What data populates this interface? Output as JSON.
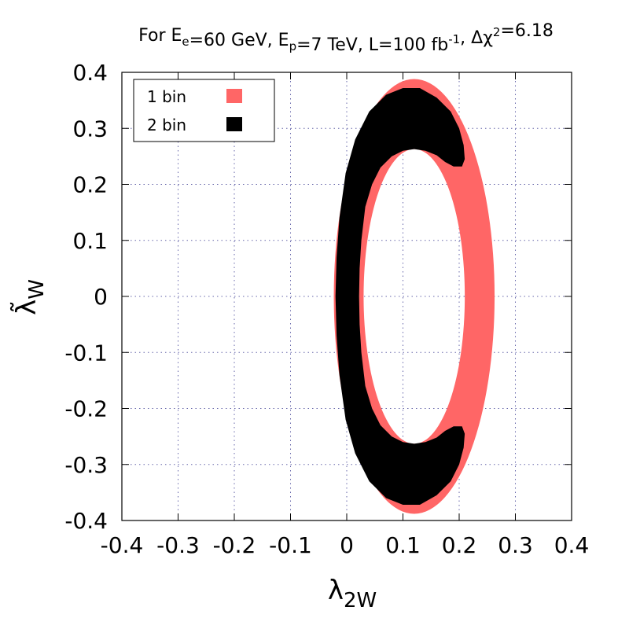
{
  "chart_data": {
    "type": "scatter",
    "title": {
      "parts": [
        {
          "t": "For E"
        },
        {
          "t": "e",
          "s": "sub"
        },
        {
          "t": "=60 GeV, E"
        },
        {
          "t": "p",
          "s": "sub"
        },
        {
          "t": "=7 TeV, L=100 fb"
        },
        {
          "t": "-1",
          "s": "sup"
        },
        {
          "t": ", Δχ"
        },
        {
          "t": "2",
          "s": "sup"
        },
        {
          "t": "=6.18"
        }
      ]
    },
    "xlabel": {
      "main": "λ",
      "sub": "2W"
    },
    "ylabel": {
      "main": "λ̃",
      "sub": "W"
    },
    "xlim": [
      -0.4,
      0.4
    ],
    "ylim": [
      -0.4,
      0.4
    ],
    "xticks": [
      "-0.4",
      "-0.3",
      "-0.2",
      "-0.1",
      "0",
      "0.1",
      "0.2",
      "0.3",
      "0.4"
    ],
    "yticks": [
      "-0.4",
      "-0.3",
      "-0.2",
      "-0.1",
      "0",
      "0.1",
      "0.2",
      "0.3",
      "0.4"
    ],
    "grid": true,
    "legend_position": "top-left",
    "series": [
      {
        "name": "1 bin",
        "color": "#ff6666",
        "outer": {
          "cx": 0.12,
          "cy": 0.0,
          "rx": 0.143,
          "ry": 0.388
        },
        "inner": {
          "cx": 0.12,
          "cy": 0.0,
          "rx": 0.09,
          "ry": 0.263
        }
      },
      {
        "name": "2 bin",
        "color": "#000000",
        "boundary": [
          [
            0.13,
            0.372
          ],
          [
            0.16,
            0.355
          ],
          [
            0.185,
            0.33
          ],
          [
            0.2,
            0.3
          ],
          [
            0.208,
            0.27
          ],
          [
            0.21,
            0.245
          ],
          [
            0.205,
            0.232
          ],
          [
            0.19,
            0.232
          ],
          [
            0.175,
            0.24
          ],
          [
            0.16,
            0.252
          ],
          [
            0.14,
            0.26
          ],
          [
            0.12,
            0.263
          ],
          [
            0.1,
            0.26
          ],
          [
            0.08,
            0.25
          ],
          [
            0.06,
            0.23
          ],
          [
            0.045,
            0.2
          ],
          [
            0.033,
            0.16
          ],
          [
            0.026,
            0.1
          ],
          [
            0.023,
            0.05
          ],
          [
            0.022,
            0.0
          ],
          [
            0.023,
            -0.05
          ],
          [
            0.026,
            -0.1
          ],
          [
            0.033,
            -0.16
          ],
          [
            0.045,
            -0.2
          ],
          [
            0.06,
            -0.23
          ],
          [
            0.08,
            -0.25
          ],
          [
            0.1,
            -0.26
          ],
          [
            0.12,
            -0.263
          ],
          [
            0.14,
            -0.26
          ],
          [
            0.16,
            -0.252
          ],
          [
            0.175,
            -0.24
          ],
          [
            0.19,
            -0.232
          ],
          [
            0.205,
            -0.232
          ],
          [
            0.21,
            -0.245
          ],
          [
            0.208,
            -0.27
          ],
          [
            0.2,
            -0.3
          ],
          [
            0.185,
            -0.33
          ],
          [
            0.16,
            -0.355
          ],
          [
            0.13,
            -0.372
          ],
          [
            0.1,
            -0.372
          ],
          [
            0.07,
            -0.36
          ],
          [
            0.04,
            -0.33
          ],
          [
            0.015,
            -0.28
          ],
          [
            -0.002,
            -0.22
          ],
          [
            -0.013,
            -0.14
          ],
          [
            -0.018,
            -0.07
          ],
          [
            -0.02,
            0.0
          ],
          [
            -0.018,
            0.07
          ],
          [
            -0.013,
            0.14
          ],
          [
            -0.002,
            0.22
          ],
          [
            0.015,
            0.28
          ],
          [
            0.04,
            0.33
          ],
          [
            0.07,
            0.36
          ],
          [
            0.1,
            0.372
          ]
        ]
      }
    ]
  }
}
